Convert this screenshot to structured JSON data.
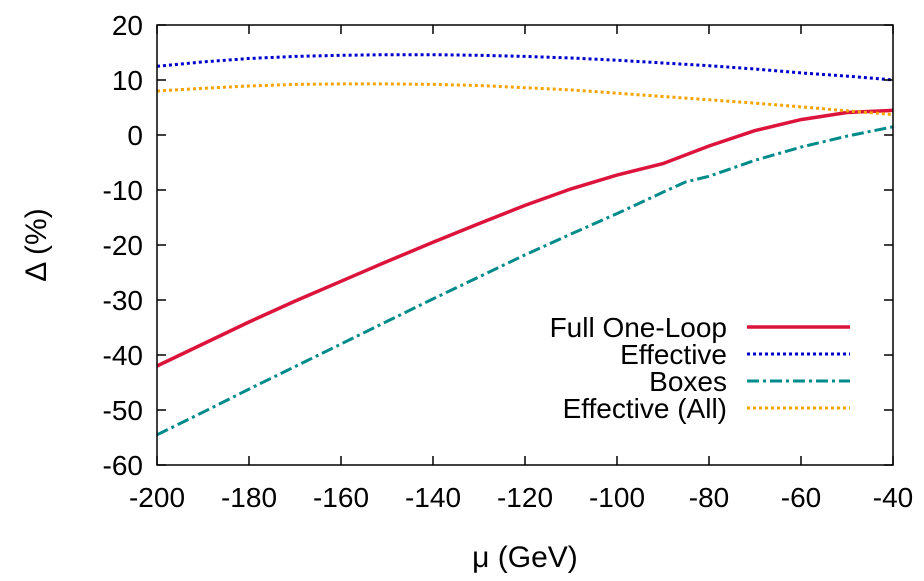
{
  "chart_data": {
    "type": "line",
    "title": "",
    "xlabel": "μ (GeV)",
    "ylabel": "Δ (%)",
    "xlim": [
      -200,
      -40
    ],
    "ylim": [
      -60,
      20
    ],
    "xticks": [
      "-200",
      "-180",
      "-160",
      "-140",
      "-120",
      "-100",
      "-80",
      "-60",
      "-40"
    ],
    "yticks": [
      "20",
      "10",
      "0",
      "-10",
      "-20",
      "-30",
      "-40",
      "-50",
      "-60"
    ],
    "legend_position": "bottom-right",
    "grid": false,
    "series": [
      {
        "name": "Full One-Loop",
        "color": "#dc143c",
        "dash": "solid",
        "x": [
          -200,
          -190,
          -180,
          -170,
          -160,
          -150,
          -140,
          -130,
          -120,
          -110,
          -100,
          -90,
          -80,
          -70,
          -60,
          -50,
          -40
        ],
        "y": [
          -42,
          -38,
          -34,
          -30.2,
          -26.6,
          -23,
          -19.5,
          -16.1,
          -12.8,
          -9.8,
          -7.3,
          -5.2,
          -2,
          0.8,
          2.8,
          4.1,
          4.5
        ]
      },
      {
        "name": "Effective",
        "color": "#0000cd",
        "dash": "dotted",
        "x": [
          -200,
          -190,
          -180,
          -170,
          -160,
          -150,
          -140,
          -130,
          -120,
          -110,
          -100,
          -90,
          -80,
          -70,
          -60,
          -50,
          -40
        ],
        "y": [
          12.5,
          13.3,
          13.9,
          14.3,
          14.5,
          14.6,
          14.6,
          14.5,
          14.3,
          14,
          13.6,
          13.1,
          12.6,
          12,
          11.3,
          10.7,
          10
        ]
      },
      {
        "name": "Boxes",
        "color": "#008b8b",
        "dash": "dash-dot",
        "x": [
          -200,
          -190,
          -180,
          -170,
          -160,
          -150,
          -140,
          -130,
          -120,
          -110,
          -100,
          -90,
          -85,
          -80,
          -70,
          -60,
          -50,
          -40
        ],
        "y": [
          -54.5,
          -50.4,
          -46.2,
          -42.1,
          -38,
          -33.9,
          -29.8,
          -25.8,
          -21.8,
          -18,
          -14.3,
          -10.4,
          -8.5,
          -7.5,
          -4.6,
          -2.2,
          -0.2,
          1.5
        ]
      },
      {
        "name": "Effective (All)",
        "color": "#f4a300",
        "dash": "dotted",
        "x": [
          -200,
          -190,
          -180,
          -170,
          -160,
          -150,
          -140,
          -130,
          -120,
          -110,
          -100,
          -90,
          -80,
          -70,
          -60,
          -50,
          -40
        ],
        "y": [
          8,
          8.5,
          8.9,
          9.2,
          9.3,
          9.3,
          9.2,
          9,
          8.6,
          8.2,
          7.6,
          7,
          6.4,
          5.8,
          5.1,
          4.4,
          3.7
        ]
      }
    ]
  }
}
